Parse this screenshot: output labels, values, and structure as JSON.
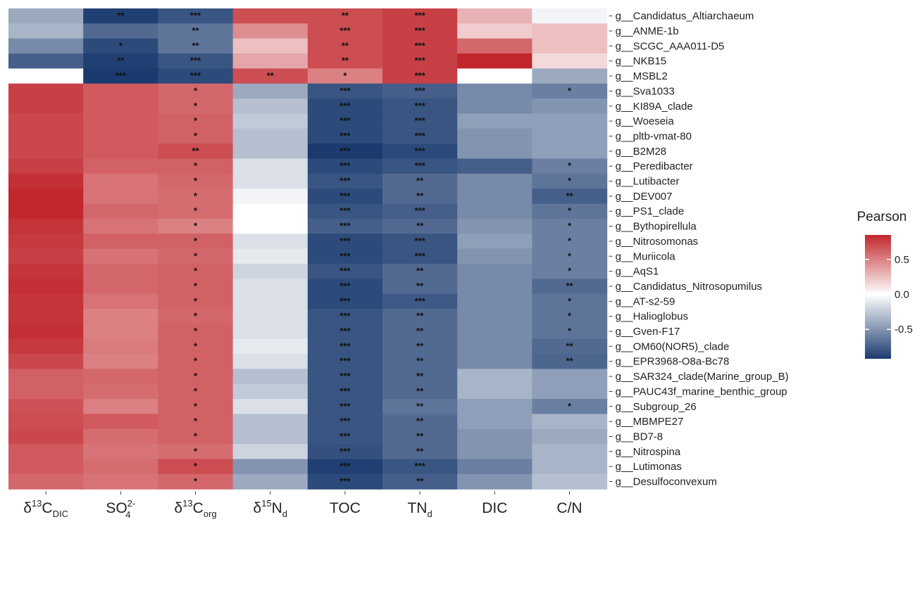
{
  "chart_data": {
    "type": "heatmap",
    "legend_title": "Pearson",
    "legend_ticks": [
      0.5,
      0.0,
      -0.5
    ],
    "legend_tick_labels": [
      "0.5",
      "0.0",
      "-0.5"
    ],
    "value_range": [
      -0.92,
      0.85
    ],
    "legend_placement": "right",
    "grid": false,
    "color_scale": {
      "low": "#1b3b6f",
      "mid": "#ffffff",
      "high": "#c1272d"
    },
    "columns": [
      {
        "main": "δ",
        "sup": "13",
        "base": "C",
        "sub": "DIC"
      },
      {
        "main": "",
        "sup": "",
        "base": "SO",
        "sub": "4",
        "sup2": "2-"
      },
      {
        "main": "δ",
        "sup": "13",
        "base": "C",
        "sub": "org"
      },
      {
        "main": "δ",
        "sup": "15",
        "base": "N",
        "sub": "d"
      },
      {
        "main": "",
        "sup": "",
        "base": "TOC",
        "sub": ""
      },
      {
        "main": "",
        "sup": "",
        "base": "TN",
        "sub": "d"
      },
      {
        "main": "",
        "sup": "",
        "base": "DIC",
        "sub": ""
      },
      {
        "main": "",
        "sup": "",
        "base": "C/N",
        "sub": ""
      }
    ],
    "rows": [
      "g__Candidatus_Altiarchaeum",
      "g__ANME-1b",
      "g__SCGC_AAA011-D5",
      "g__NKB15",
      "g__MSBL2",
      "g__Sva1033",
      "g__KI89A_clade",
      "g__Woeseia",
      "g__pltb-vmat-80",
      "g__B2M28",
      "g__Peredibacter",
      "g__Lutibacter",
      "g__DEV007",
      "g__PS1_clade",
      "g__Bythopirellula",
      "g__Nitrosomonas",
      "g__Muriicola",
      "g__AqS1",
      "g__Candidatus_Nitrosopumilus",
      "g__AT-s2-59",
      "g__Halioglobus",
      "g__Gven-F17",
      "g__OM60(NOR5)_clade",
      "g__EPR3968-O8a-Bc78",
      "g__SAR324_clade(Marine_group_B)",
      "g__PAUC43f_marine_benthic_group",
      "g__Subgroup_26",
      "g__MBMPE27",
      "g__BD7-8",
      "g__Nitrospina",
      "g__Lutimonas",
      "g__Desulfoconvexum"
    ],
    "values": [
      [
        -0.4,
        -0.9,
        -0.8,
        0.7,
        0.7,
        0.75,
        0.3,
        -0.05
      ],
      [
        -0.35,
        -0.7,
        -0.65,
        0.45,
        0.7,
        0.75,
        0.2,
        0.25
      ],
      [
        -0.55,
        -0.85,
        -0.65,
        0.25,
        0.7,
        0.75,
        0.6,
        0.25
      ],
      [
        -0.75,
        -0.9,
        -0.8,
        0.35,
        0.7,
        0.75,
        0.85,
        0.15
      ],
      [
        null,
        -0.92,
        -0.85,
        0.7,
        0.5,
        0.75,
        null,
        -0.4
      ],
      [
        0.75,
        0.65,
        0.6,
        -0.4,
        -0.8,
        -0.75,
        -0.55,
        -0.6
      ],
      [
        0.75,
        0.65,
        0.6,
        -0.3,
        -0.85,
        -0.8,
        -0.55,
        -0.5
      ],
      [
        0.72,
        0.65,
        0.62,
        -0.25,
        -0.85,
        -0.8,
        -0.45,
        -0.45
      ],
      [
        0.72,
        0.65,
        0.62,
        -0.3,
        -0.85,
        -0.8,
        -0.5,
        -0.45
      ],
      [
        0.72,
        0.65,
        0.7,
        -0.3,
        -0.92,
        -0.85,
        -0.5,
        -0.45
      ],
      [
        0.75,
        0.62,
        0.62,
        -0.15,
        -0.85,
        -0.8,
        -0.75,
        -0.6
      ],
      [
        0.82,
        0.55,
        0.6,
        -0.15,
        -0.8,
        -0.7,
        -0.55,
        -0.65
      ],
      [
        0.85,
        0.55,
        0.58,
        -0.05,
        -0.85,
        -0.7,
        -0.55,
        -0.75
      ],
      [
        0.85,
        0.6,
        0.58,
        0.0,
        -0.8,
        -0.75,
        -0.55,
        -0.65
      ],
      [
        0.8,
        0.55,
        0.5,
        0.0,
        -0.75,
        -0.7,
        -0.5,
        -0.6
      ],
      [
        0.78,
        0.62,
        0.62,
        -0.15,
        -0.85,
        -0.8,
        -0.45,
        -0.6
      ],
      [
        0.75,
        0.55,
        0.6,
        -0.1,
        -0.85,
        -0.8,
        -0.5,
        -0.6
      ],
      [
        0.8,
        0.6,
        0.62,
        -0.2,
        -0.8,
        -0.7,
        -0.55,
        -0.6
      ],
      [
        0.82,
        0.6,
        0.62,
        -0.15,
        -0.85,
        -0.7,
        -0.55,
        -0.7
      ],
      [
        0.8,
        0.55,
        0.62,
        -0.15,
        -0.85,
        -0.78,
        -0.55,
        -0.65
      ],
      [
        0.8,
        0.5,
        0.6,
        -0.15,
        -0.8,
        -0.7,
        -0.55,
        -0.65
      ],
      [
        0.82,
        0.5,
        0.62,
        -0.15,
        -0.8,
        -0.7,
        -0.55,
        -0.65
      ],
      [
        0.78,
        0.52,
        0.62,
        -0.1,
        -0.8,
        -0.7,
        -0.55,
        -0.7
      ],
      [
        0.72,
        0.5,
        0.62,
        -0.15,
        -0.8,
        -0.7,
        -0.55,
        -0.72
      ],
      [
        0.62,
        0.6,
        0.62,
        -0.3,
        -0.8,
        -0.7,
        -0.35,
        -0.45
      ],
      [
        0.62,
        0.58,
        0.62,
        -0.25,
        -0.8,
        -0.7,
        -0.35,
        -0.45
      ],
      [
        0.68,
        0.5,
        0.62,
        -0.15,
        -0.8,
        -0.65,
        -0.45,
        -0.6
      ],
      [
        0.7,
        0.65,
        0.62,
        -0.3,
        -0.8,
        -0.7,
        -0.45,
        -0.35
      ],
      [
        0.72,
        0.58,
        0.62,
        -0.3,
        -0.8,
        -0.7,
        -0.5,
        -0.4
      ],
      [
        0.65,
        0.55,
        0.58,
        -0.2,
        -0.82,
        -0.7,
        -0.5,
        -0.35
      ],
      [
        0.65,
        0.58,
        0.7,
        -0.5,
        -0.9,
        -0.8,
        -0.6,
        -0.35
      ],
      [
        0.6,
        0.55,
        0.6,
        -0.4,
        -0.85,
        -0.75,
        -0.5,
        -0.3
      ]
    ],
    "significance": [
      [
        "",
        "**",
        "***",
        "",
        "**",
        "***",
        "",
        ""
      ],
      [
        "",
        "",
        "**",
        "",
        "***",
        "***",
        "",
        ""
      ],
      [
        "",
        "*",
        "**",
        "",
        "**",
        "***",
        "",
        ""
      ],
      [
        "",
        "**",
        "***",
        "",
        "**",
        "***",
        "",
        ""
      ],
      [
        "",
        "***",
        "***",
        "**",
        "*",
        "***",
        "",
        ""
      ],
      [
        "",
        "",
        "*",
        "",
        "***",
        "***",
        "",
        "*"
      ],
      [
        "",
        "",
        "*",
        "",
        "***",
        "***",
        "",
        ""
      ],
      [
        "",
        "",
        "*",
        "",
        "***",
        "***",
        "",
        ""
      ],
      [
        "",
        "",
        "*",
        "",
        "***",
        "***",
        "",
        ""
      ],
      [
        "",
        "",
        "**",
        "",
        "***",
        "***",
        "",
        ""
      ],
      [
        "",
        "",
        "*",
        "",
        "***",
        "***",
        "",
        "*"
      ],
      [
        "",
        "",
        "*",
        "",
        "***",
        "**",
        "",
        "*"
      ],
      [
        "",
        "",
        "*",
        "",
        "***",
        "**",
        "",
        "**"
      ],
      [
        "",
        "",
        "*",
        "",
        "***",
        "***",
        "",
        "*"
      ],
      [
        "",
        "",
        "*",
        "",
        "***",
        "**",
        "",
        "*"
      ],
      [
        "",
        "",
        "*",
        "",
        "***",
        "***",
        "",
        "*"
      ],
      [
        "",
        "",
        "*",
        "",
        "***",
        "***",
        "",
        "*"
      ],
      [
        "",
        "",
        "*",
        "",
        "***",
        "**",
        "",
        "*"
      ],
      [
        "",
        "",
        "*",
        "",
        "***",
        "**",
        "",
        "**"
      ],
      [
        "",
        "",
        "*",
        "",
        "***",
        "***",
        "",
        "*"
      ],
      [
        "",
        "",
        "*",
        "",
        "***",
        "**",
        "",
        "*"
      ],
      [
        "",
        "",
        "*",
        "",
        "***",
        "**",
        "",
        "*"
      ],
      [
        "",
        "",
        "*",
        "",
        "***",
        "**",
        "",
        "**"
      ],
      [
        "",
        "",
        "*",
        "",
        "***",
        "**",
        "",
        "**"
      ],
      [
        "",
        "",
        "*",
        "",
        "***",
        "**",
        "",
        ""
      ],
      [
        "",
        "",
        "*",
        "",
        "***",
        "**",
        "",
        ""
      ],
      [
        "",
        "",
        "*",
        "",
        "***",
        "**",
        "",
        "*"
      ],
      [
        "",
        "",
        "*",
        "",
        "***",
        "**",
        "",
        ""
      ],
      [
        "",
        "",
        "*",
        "",
        "***",
        "**",
        "",
        ""
      ],
      [
        "",
        "",
        "*",
        "",
        "***",
        "**",
        "",
        ""
      ],
      [
        "",
        "",
        "*",
        "",
        "***",
        "***",
        "",
        ""
      ],
      [
        "",
        "",
        "*",
        "",
        "***",
        "**",
        "",
        ""
      ]
    ]
  }
}
